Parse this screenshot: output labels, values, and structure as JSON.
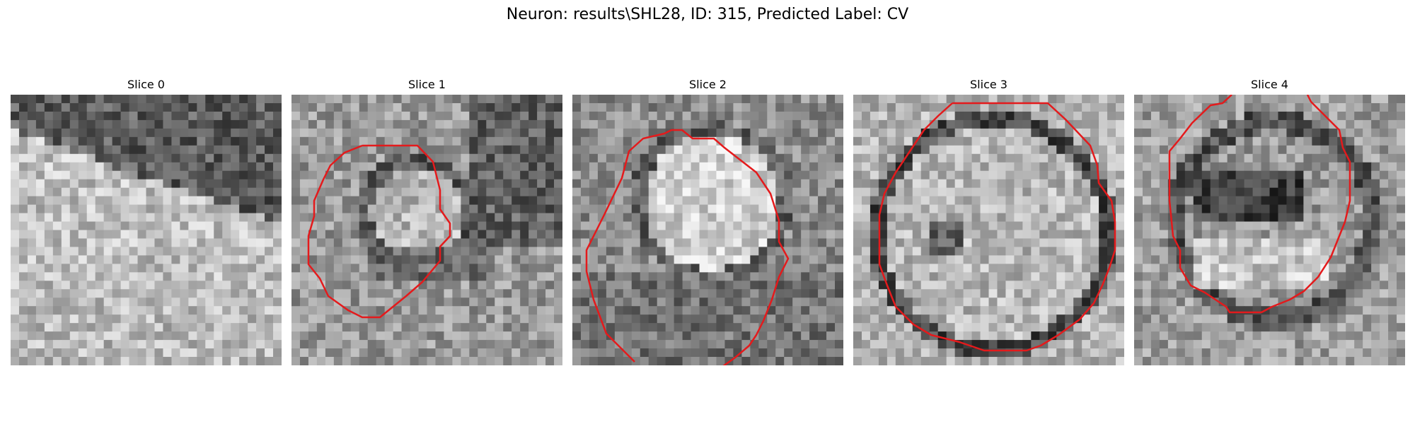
{
  "figure": {
    "title": "Neuron: results\\SHL28, ID: 315, Predicted Label: CV"
  },
  "panels": [
    {
      "title": "Slice 0"
    },
    {
      "title": "Slice 1"
    },
    {
      "title": "Slice 2"
    },
    {
      "title": "Slice 3"
    },
    {
      "title": "Slice 4"
    }
  ],
  "colors": {
    "contour": "#e41a1c",
    "background": "#ffffff"
  }
}
